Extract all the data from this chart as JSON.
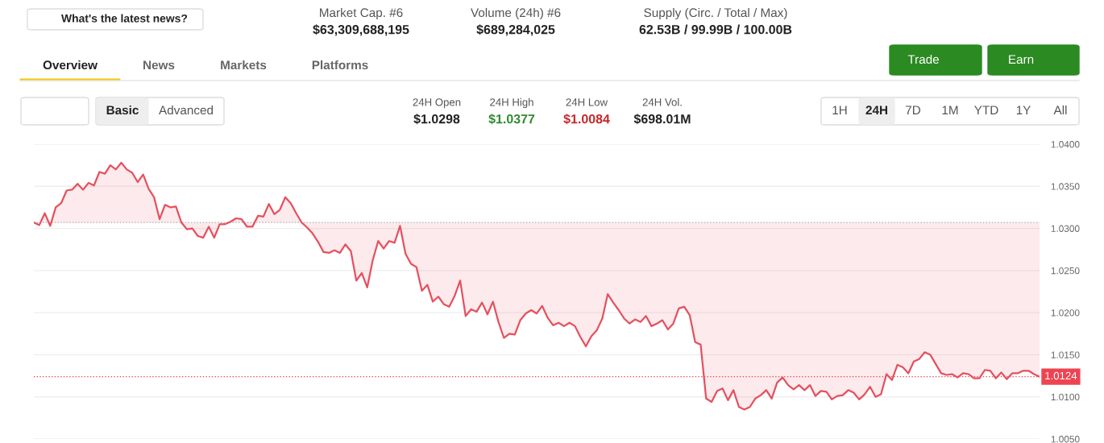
{
  "chart_data": {
    "type": "line",
    "annotations": [
      "What's the latest news?",
      "Market Cap. #6",
      "$63,309,688,195",
      "Volume (24h) #6",
      "$689,284,025",
      "Supply (Circ. / Total / Max)",
      "62.53B / 99.99B / 100.00B",
      "Overview",
      "News",
      "Markets",
      "Platforms",
      "Trade",
      "Earn",
      "Basic",
      "Advanced",
      "24H Open",
      "$1.0298",
      "24H High",
      "$1.0377",
      "24H Low",
      "$1.0084",
      "24H Vol.",
      "$698.01M",
      "1H",
      "24H",
      "7D",
      "1M",
      "YTD",
      "1Y",
      "All"
    ],
    "categories": [
      null,
      null,
      null,
      null,
      null,
      null,
      null,
      null,
      null,
      null,
      null,
      null,
      null,
      null,
      null,
      null,
      null,
      null,
      null,
      null,
      null,
      null,
      null,
      null,
      null,
      null,
      null,
      null,
      null,
      null,
      null,
      null,
      null,
      null,
      null,
      null,
      null,
      null,
      null,
      null,
      null,
      null,
      null,
      null,
      null,
      null,
      null,
      null,
      null,
      null,
      null,
      null,
      null,
      null,
      null,
      null,
      null,
      null,
      null,
      null,
      null,
      null,
      null,
      null,
      null,
      null,
      null,
      null,
      null,
      null,
      null,
      null,
      null,
      null,
      null,
      null,
      null,
      null,
      null,
      null,
      null,
      null,
      null,
      null,
      null,
      null,
      null,
      null,
      null,
      null,
      null,
      null,
      null,
      null,
      null,
      null,
      null,
      null,
      null,
      null,
      null,
      null,
      null,
      null,
      null,
      null,
      null,
      null,
      null,
      null,
      null,
      null,
      null,
      null,
      null,
      null,
      null,
      null,
      null,
      null,
      null,
      null,
      null,
      null,
      null,
      null,
      null,
      null,
      null,
      null,
      null,
      null,
      null,
      null,
      null,
      null,
      null,
      null,
      null,
      null,
      null,
      null,
      null,
      null,
      null,
      null,
      null,
      null,
      null,
      null,
      null,
      null,
      null,
      null,
      null,
      null,
      null,
      null,
      null,
      null,
      null,
      null,
      null,
      null,
      null,
      null,
      null,
      null,
      null,
      null,
      null,
      null,
      null,
      null,
      null,
      null,
      null,
      null,
      null,
      null,
      null,
      null,
      null,
      null,
      null
    ],
    "series": [
      {
        "color": "#e5505f",
        "values": [
          1.0307,
          1.0304,
          1.0318,
          1.0303,
          1.0325,
          1.033,
          1.0345,
          1.0346,
          1.0353,
          1.0346,
          1.0354,
          1.0351,
          1.0367,
          1.0365,
          1.0375,
          1.037,
          1.0378,
          1.037,
          1.0366,
          1.0355,
          1.0364,
          1.0347,
          1.0337,
          1.0311,
          1.0328,
          1.0325,
          1.0326,
          1.0307,
          1.0299,
          1.03,
          1.0291,
          1.0289,
          1.0302,
          1.0289,
          1.0305,
          1.0305,
          1.0308,
          1.0312,
          1.0311,
          1.0302,
          1.0302,
          1.0315,
          1.0314,
          1.0329,
          1.0317,
          1.0322,
          1.0337,
          1.033,
          1.0318,
          1.0307,
          1.0301,
          1.0294,
          1.0284,
          1.0272,
          1.0271,
          1.0274,
          1.0271,
          1.0281,
          1.0273,
          1.0238,
          1.0247,
          1.023,
          1.0262,
          1.0285,
          1.0276,
          1.0285,
          1.0283,
          1.0303,
          1.027,
          1.0258,
          1.0254,
          1.0226,
          1.0233,
          1.0213,
          1.0219,
          1.021,
          1.0207,
          1.022,
          1.0238,
          1.0196,
          1.0204,
          1.0201,
          1.0212,
          1.0198,
          1.0213,
          1.0189,
          1.017,
          1.0175,
          1.0174,
          1.0191,
          1.0199,
          1.0203,
          1.0199,
          1.0208,
          1.0194,
          1.0185,
          1.0188,
          1.0184,
          1.0188,
          1.0184,
          1.0171,
          1.016,
          1.0172,
          1.0179,
          1.0193,
          1.0222,
          1.0212,
          1.0203,
          1.0193,
          1.0187,
          1.0192,
          1.0189,
          1.0196,
          1.0184,
          1.0187,
          1.0191,
          1.018,
          1.0187,
          1.0205,
          1.0207,
          1.0197,
          1.0165,
          1.0162,
          1.0098,
          1.0094,
          1.0107,
          1.011,
          1.0096,
          1.0108,
          1.0088,
          1.0085,
          1.0088,
          1.0098,
          1.0102,
          1.0108,
          1.0098,
          1.0117,
          1.0123,
          1.0114,
          1.0109,
          1.0114,
          1.0108,
          1.0114,
          1.0101,
          1.0107,
          1.0106,
          1.0097,
          1.0101,
          1.0102,
          1.0108,
          1.0105,
          1.0097,
          1.0103,
          1.0112,
          1.01,
          1.0103,
          1.0127,
          1.012,
          1.0138,
          1.0135,
          1.0128,
          1.0142,
          1.0145,
          1.0153,
          1.015,
          1.0139,
          1.0128,
          1.0126,
          1.0127,
          1.0123,
          1.0128,
          1.0127,
          1.0122,
          1.0122,
          1.0132,
          1.0131,
          1.0122,
          1.0129,
          1.0121,
          1.0128,
          1.0128,
          1.0131,
          1.0131,
          1.0127,
          1.0124
        ]
      }
    ],
    "ref_lines": [
      {
        "axis": "y",
        "value": 1.0307,
        "line_style": "dotted"
      },
      {
        "axis": "y",
        "value": 1.0124,
        "label": "1.0124",
        "color": "#ee4452",
        "line_style": "dotted"
      }
    ],
    "ylim": [
      1.005,
      1.04
    ],
    "yticks": [
      {
        "value": 1.005,
        "label": "1.0050"
      },
      {
        "value": 1.01,
        "label": "1.0100"
      },
      {
        "value": 1.015,
        "label": "1.0150"
      },
      {
        "value": 1.02,
        "label": "1.0200"
      },
      {
        "value": 1.025,
        "label": "1.0250"
      },
      {
        "value": 1.03,
        "label": "1.0300"
      },
      {
        "value": 1.035,
        "label": "1.0350"
      },
      {
        "value": 1.04,
        "label": "1.0400"
      }
    ],
    "grid": "y",
    "tick_labels": "y",
    "line_style": "solid"
  }
}
